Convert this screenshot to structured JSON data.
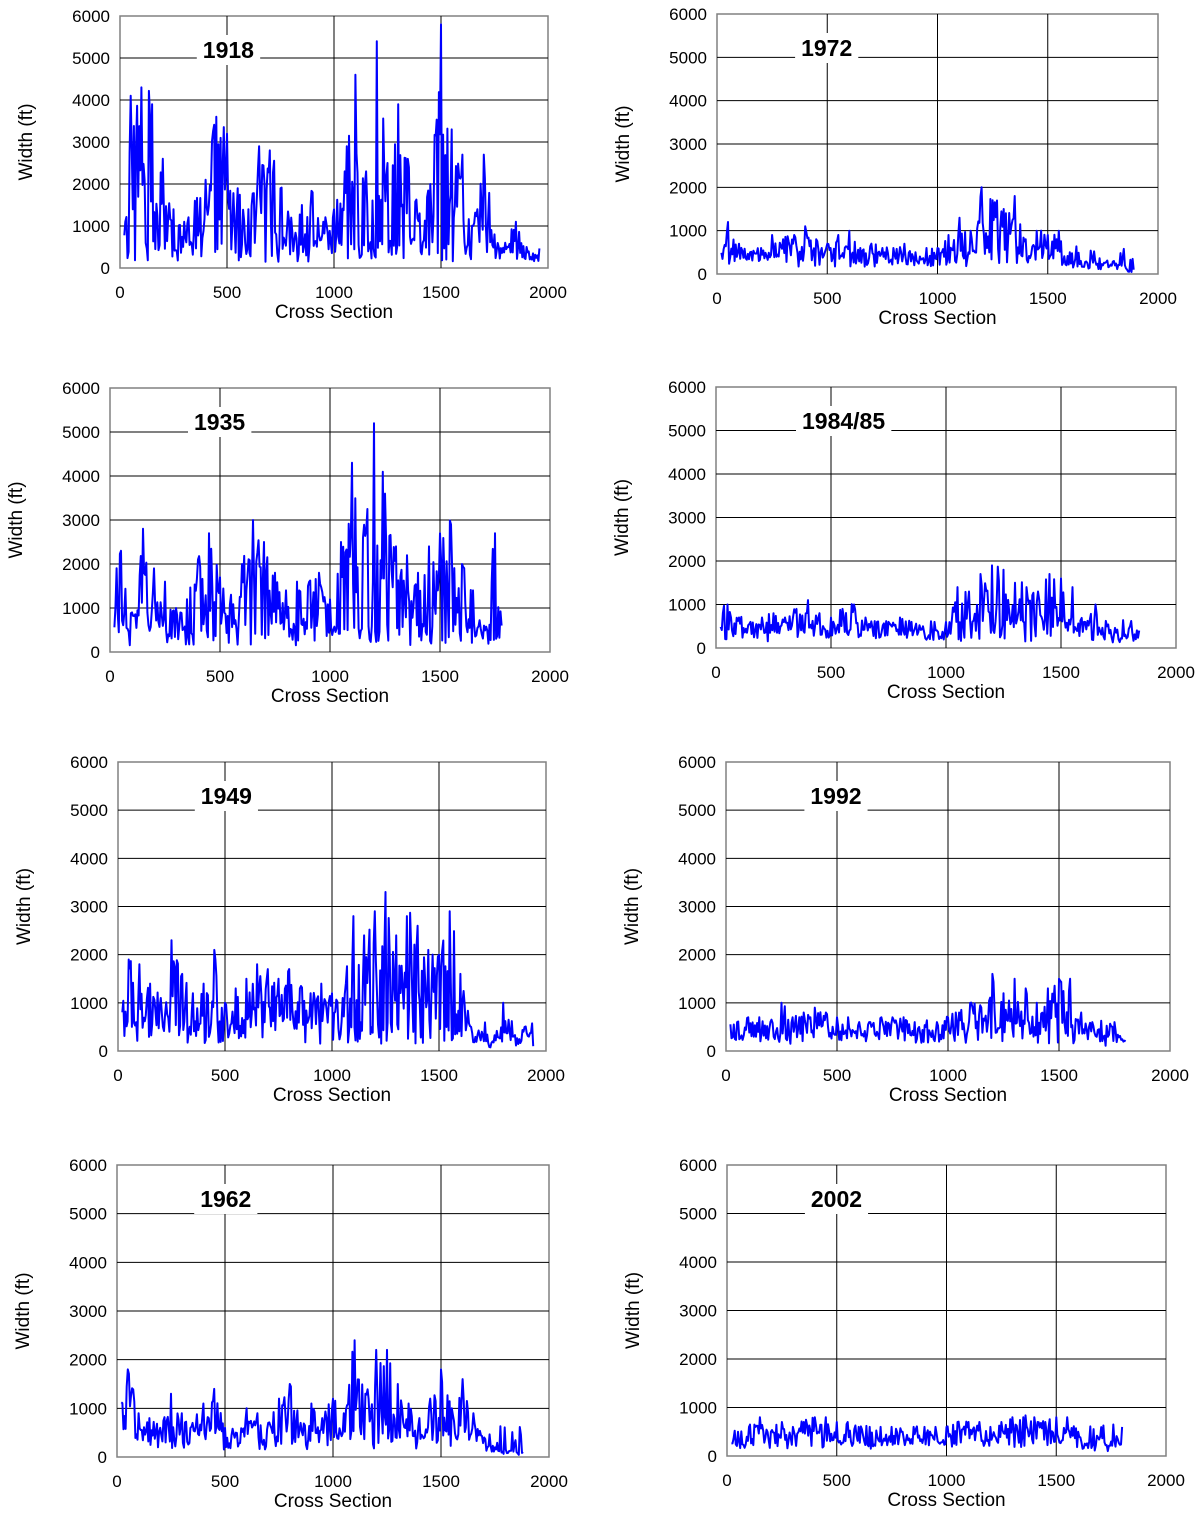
{
  "chart_data": [
    {
      "type": "line",
      "title": "1918",
      "xlabel": "Cross Section",
      "ylabel": "Width (ft)",
      "xlim": [
        0,
        2000
      ],
      "ylim": [
        0,
        6000
      ],
      "xticks": [
        0,
        500,
        1000,
        1500,
        2000
      ],
      "yticks": [
        0,
        1000,
        2000,
        3000,
        4000,
        5000,
        6000
      ],
      "grid": true,
      "x_end": 1960,
      "series": [
        {
          "color": "#0000ff",
          "x": [
            0,
            50,
            100,
            150,
            200,
            250,
            300,
            350,
            400,
            450,
            500,
            550,
            600,
            650,
            700,
            750,
            800,
            850,
            900,
            950,
            1000,
            1050,
            1100,
            1150,
            1200,
            1250,
            1300,
            1350,
            1400,
            1450,
            1500,
            1550,
            1600,
            1650,
            1700,
            1750,
            1800,
            1850,
            1900,
            1950
          ],
          "y": [
            400,
            4100,
            4300,
            3900,
            2600,
            1400,
            1100,
            1600,
            2100,
            3600,
            3200,
            1900,
            1400,
            2900,
            2800,
            1900,
            1200,
            1500,
            1800,
            1100,
            1400,
            2300,
            4600,
            2300,
            5400,
            2500,
            3900,
            2400,
            1300,
            2000,
            5800,
            3300,
            2700,
            1000,
            2700,
            800,
            600,
            1100,
            500,
            300
          ]
        }
      ]
    },
    {
      "type": "line",
      "title": "1935",
      "xlabel": "Cross Section",
      "ylabel": "Width (ft)",
      "xlim": [
        0,
        2000
      ],
      "ylim": [
        0,
        6000
      ],
      "xticks": [
        0,
        500,
        1000,
        1500,
        2000
      ],
      "yticks": [
        0,
        1000,
        2000,
        3000,
        4000,
        5000,
        6000
      ],
      "grid": true,
      "x_end": 1780,
      "series": [
        {
          "color": "#0000ff",
          "x": [
            0,
            50,
            100,
            150,
            200,
            250,
            300,
            350,
            400,
            450,
            500,
            550,
            600,
            650,
            700,
            750,
            800,
            850,
            900,
            950,
            1000,
            1050,
            1100,
            1150,
            1200,
            1250,
            1300,
            1350,
            1400,
            1450,
            1500,
            1550,
            1600,
            1650,
            1700,
            1750,
            1780
          ],
          "y": [
            1300,
            2300,
            900,
            2800,
            1900,
            1600,
            1000,
            1200,
            2100,
            2700,
            1700,
            1300,
            2000,
            3000,
            2500,
            1800,
            1400,
            1600,
            1500,
            1800,
            1200,
            2500,
            4300,
            2600,
            5200,
            3600,
            2400,
            2200,
            1800,
            2400,
            2700,
            2900,
            2000,
            1400,
            600,
            2700,
            600
          ]
        }
      ]
    },
    {
      "type": "line",
      "title": "1949",
      "xlabel": "Cross Section",
      "ylabel": "Width (ft)",
      "xlim": [
        0,
        2000
      ],
      "ylim": [
        0,
        6000
      ],
      "xticks": [
        0,
        500,
        1000,
        1500,
        2000
      ],
      "yticks": [
        0,
        1000,
        2000,
        3000,
        4000,
        5000,
        6000
      ],
      "grid": true,
      "x_end": 1940,
      "series": [
        {
          "color": "#0000ff",
          "x": [
            0,
            50,
            100,
            150,
            200,
            250,
            300,
            350,
            400,
            450,
            500,
            550,
            600,
            650,
            700,
            750,
            800,
            850,
            900,
            950,
            1000,
            1050,
            1100,
            1150,
            1200,
            1250,
            1300,
            1350,
            1400,
            1450,
            1500,
            1550,
            1600,
            1650,
            1700,
            1750,
            1800,
            1850,
            1900,
            1940
          ],
          "y": [
            1200,
            1900,
            1800,
            1400,
            1100,
            2300,
            1600,
            1200,
            1400,
            2100,
            1000,
            1300,
            1500,
            1800,
            1700,
            1500,
            1700,
            1300,
            1200,
            1400,
            1200,
            1100,
            2800,
            2400,
            2900,
            3300,
            2400,
            2800,
            2600,
            2100,
            2000,
            2900,
            1600,
            500,
            400,
            200,
            1000,
            300,
            500,
            100
          ]
        }
      ]
    },
    {
      "type": "line",
      "title": "1962",
      "xlabel": "Cross Section",
      "ylabel": "Width (ft)",
      "xlim": [
        0,
        2000
      ],
      "ylim": [
        0,
        6000
      ],
      "xticks": [
        0,
        500,
        1000,
        1500,
        2000
      ],
      "yticks": [
        0,
        1000,
        2000,
        3000,
        4000,
        5000,
        6000
      ],
      "grid": true,
      "x_end": 1880,
      "series": [
        {
          "color": "#0000ff",
          "x": [
            0,
            50,
            100,
            150,
            200,
            250,
            300,
            350,
            400,
            450,
            500,
            550,
            600,
            650,
            700,
            750,
            800,
            850,
            900,
            950,
            1000,
            1050,
            1100,
            1150,
            1200,
            1250,
            1300,
            1350,
            1400,
            1450,
            1500,
            1550,
            1600,
            1650,
            1700,
            1750,
            1800,
            1850,
            1880
          ],
          "y": [
            1100,
            1800,
            900,
            800,
            600,
            1300,
            900,
            700,
            1100,
            1400,
            600,
            500,
            1000,
            900,
            700,
            1200,
            1500,
            700,
            1100,
            800,
            1200,
            900,
            2400,
            1300,
            2200,
            2200,
            1500,
            1100,
            800,
            1200,
            1800,
            1000,
            1600,
            900,
            400,
            200,
            150,
            100,
            100
          ]
        }
      ]
    },
    {
      "type": "line",
      "title": "1972",
      "xlabel": "Cross Section",
      "ylabel": "Width (ft)",
      "xlim": [
        0,
        2000
      ],
      "ylim": [
        0,
        6000
      ],
      "xticks": [
        0,
        500,
        1000,
        1500,
        2000
      ],
      "yticks": [
        0,
        1000,
        2000,
        3000,
        4000,
        5000,
        6000
      ],
      "grid": true,
      "x_end": 1890,
      "series": [
        {
          "color": "#0000ff",
          "x": [
            0,
            50,
            100,
            150,
            200,
            250,
            300,
            350,
            400,
            450,
            500,
            550,
            600,
            650,
            700,
            750,
            800,
            850,
            900,
            950,
            1000,
            1050,
            1100,
            1150,
            1200,
            1250,
            1300,
            1350,
            1400,
            1450,
            1500,
            1550,
            1600,
            1650,
            1700,
            1750,
            1800,
            1850,
            1890
          ],
          "y": [
            1100,
            1200,
            700,
            500,
            600,
            900,
            800,
            900,
            1100,
            800,
            700,
            900,
            1000,
            600,
            700,
            600,
            600,
            700,
            500,
            600,
            600,
            900,
            1300,
            1000,
            2000,
            1700,
            1500,
            1800,
            800,
            1000,
            900,
            1000,
            500,
            300,
            400,
            200,
            300,
            200,
            100
          ]
        }
      ]
    },
    {
      "type": "line",
      "title": "1984/85",
      "xlabel": "Cross Section",
      "ylabel": "Width (ft)",
      "xlim": [
        0,
        2000
      ],
      "ylim": [
        0,
        6000
      ],
      "xticks": [
        0,
        500,
        1000,
        1500,
        2000
      ],
      "yticks": [
        0,
        1000,
        2000,
        3000,
        4000,
        5000,
        6000
      ],
      "grid": true,
      "x_end": 1840,
      "series": [
        {
          "color": "#0000ff",
          "x": [
            0,
            50,
            100,
            150,
            200,
            250,
            300,
            350,
            400,
            450,
            500,
            550,
            600,
            650,
            700,
            750,
            800,
            850,
            900,
            950,
            1000,
            1050,
            1100,
            1150,
            1200,
            1250,
            1300,
            1350,
            1400,
            1450,
            1500,
            1550,
            1600,
            1650,
            1700,
            1750,
            1800,
            1840
          ],
          "y": [
            1100,
            1000,
            700,
            600,
            700,
            800,
            700,
            900,
            1100,
            800,
            700,
            900,
            1000,
            700,
            600,
            600,
            700,
            600,
            500,
            600,
            600,
            1400,
            1300,
            1700,
            1900,
            1800,
            1500,
            1400,
            1300,
            1700,
            1600,
            1400,
            600,
            1000,
            500,
            200,
            500,
            400
          ]
        }
      ]
    },
    {
      "type": "line",
      "title": "1992",
      "xlabel": "Cross Section",
      "ylabel": "Width (ft)",
      "xlim": [
        0,
        2000
      ],
      "ylim": [
        0,
        6000
      ],
      "xticks": [
        0,
        500,
        1000,
        1500,
        2000
      ],
      "yticks": [
        0,
        1000,
        2000,
        3000,
        4000,
        5000,
        6000
      ],
      "grid": true,
      "x_end": 1800,
      "series": [
        {
          "color": "#0000ff",
          "x": [
            0,
            50,
            100,
            150,
            200,
            250,
            300,
            350,
            400,
            450,
            500,
            550,
            600,
            650,
            700,
            750,
            800,
            850,
            900,
            950,
            1000,
            1050,
            1100,
            1150,
            1200,
            1250,
            1300,
            1350,
            1400,
            1450,
            1500,
            1550,
            1600,
            1650,
            1700,
            1750,
            1800
          ],
          "y": [
            500,
            600,
            700,
            700,
            600,
            1000,
            700,
            800,
            900,
            800,
            700,
            700,
            600,
            600,
            700,
            700,
            700,
            600,
            500,
            600,
            700,
            800,
            1000,
            900,
            1600,
            1200,
            1500,
            1300,
            1000,
            1300,
            1500,
            1500,
            800,
            600,
            300,
            600,
            200
          ]
        }
      ]
    },
    {
      "type": "line",
      "title": "2002",
      "xlabel": "Cross Section",
      "ylabel": "Width (ft)",
      "xlim": [
        0,
        2000
      ],
      "ylim": [
        0,
        6000
      ],
      "xticks": [
        0,
        500,
        1000,
        1500,
        2000
      ],
      "yticks": [
        0,
        1000,
        2000,
        3000,
        4000,
        5000,
        6000
      ],
      "grid": true,
      "x_end": 1800,
      "series": [
        {
          "color": "#0000ff",
          "x": [
            0,
            50,
            100,
            150,
            200,
            250,
            300,
            350,
            400,
            450,
            500,
            550,
            600,
            650,
            700,
            750,
            800,
            850,
            900,
            950,
            1000,
            1050,
            1100,
            1150,
            1200,
            1250,
            1300,
            1350,
            1400,
            1450,
            1500,
            1550,
            1600,
            1650,
            1700,
            1750,
            1800
          ],
          "y": [
            400,
            500,
            600,
            800,
            500,
            700,
            600,
            700,
            800,
            800,
            700,
            700,
            600,
            600,
            600,
            600,
            500,
            600,
            600,
            600,
            600,
            700,
            700,
            700,
            600,
            700,
            800,
            800,
            800,
            700,
            800,
            800,
            500,
            300,
            400,
            300,
            600
          ]
        }
      ]
    }
  ]
}
